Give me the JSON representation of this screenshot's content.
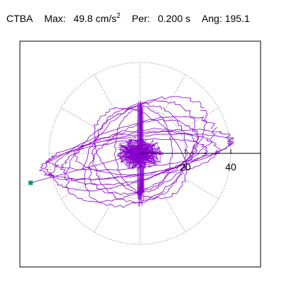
{
  "header": {
    "station": "CTBA",
    "max_label": "Max:",
    "max_value": "49.8",
    "max_unit": "cm/s",
    "max_unit_exp": "2",
    "per_label": "Per:",
    "per_value": "0.200 s",
    "ang_label": "Ang:",
    "ang_value": "195.1"
  },
  "chart_data": {
    "type": "polar-particle-motion",
    "radial_ticks": [
      20,
      40
    ],
    "radial_tick_labels": [
      "20",
      "40"
    ],
    "rmax": 40,
    "grid_circles": [
      20,
      40
    ],
    "spokes_deg": [
      0,
      30,
      60,
      90,
      120,
      150,
      180,
      210,
      240,
      270,
      300,
      330
    ],
    "peak_angle_deg": 195.1,
    "peak_amplitude": 49.8,
    "grid": true,
    "colors": {
      "trace": "#8800cc",
      "marker": "#009966",
      "grid": "#888888"
    }
  }
}
